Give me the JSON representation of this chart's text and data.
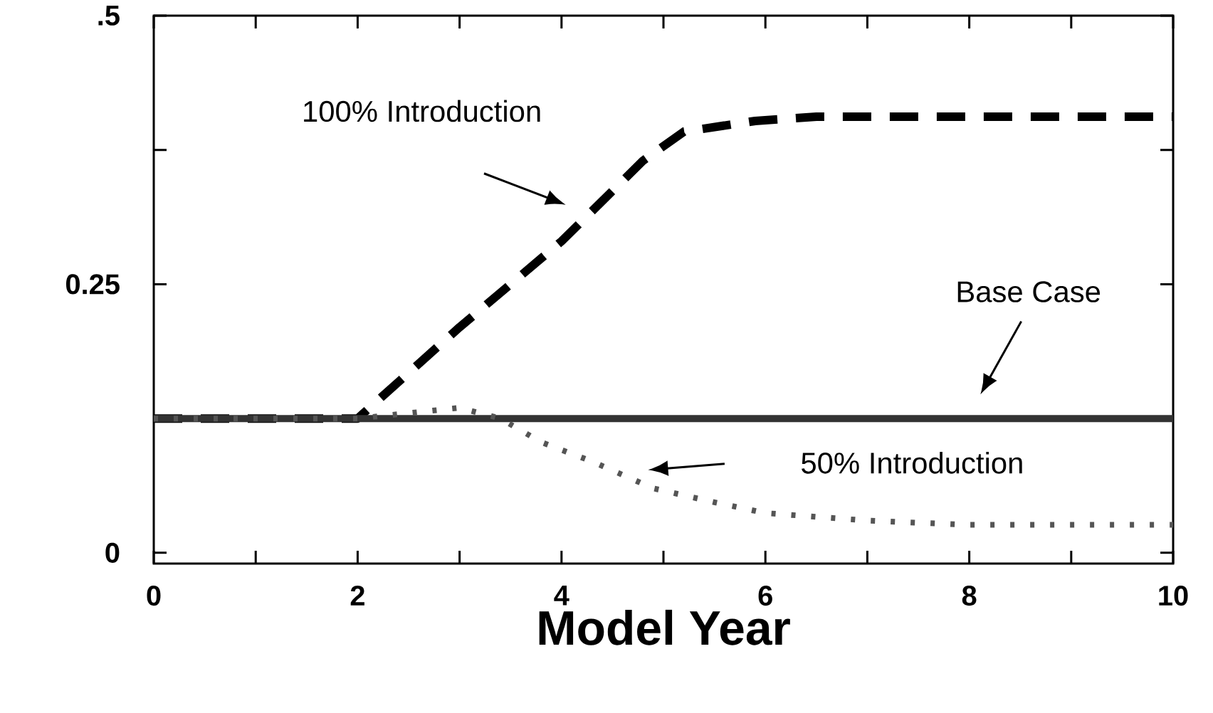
{
  "chart_data": {
    "type": "line",
    "xlabel": "Model Year",
    "xlim": [
      0,
      10
    ],
    "xticks": [
      0,
      {
        "value": 1,
        "label": null
      },
      2,
      {
        "value": 3,
        "label": null
      },
      4,
      {
        "value": 5,
        "label": null
      },
      6,
      {
        "value": 7,
        "label": null
      },
      8,
      {
        "value": 9,
        "label": null
      },
      10
    ],
    "ylim": [
      -0.01,
      0.5
    ],
    "yticks": [
      0,
      {
        "value": 0.125,
        "label": null
      },
      {
        "value": 0.25,
        "label": "0.25"
      },
      {
        "value": 0.375,
        "label": null
      },
      {
        "value": 0.5,
        "label": ".5"
      }
    ],
    "series": [
      {
        "color": "#000000",
        "line_style": "dashed",
        "x": [
          0,
          2,
          3,
          4,
          4.8,
          5.2,
          5.9,
          6.5,
          10
        ],
        "values": [
          0.125,
          0.125,
          0.21,
          0.29,
          0.365,
          0.392,
          0.402,
          0.406,
          0.406
        ]
      },
      {
        "color": "#333333",
        "line_style": "solid",
        "x": [
          0,
          10
        ],
        "values": [
          0.125,
          0.125
        ]
      },
      {
        "color": "#555555",
        "line_style": "dotted",
        "x": [
          0,
          2,
          2.5,
          3,
          3.4,
          3.8,
          4.3,
          4.9,
          5.5,
          6,
          7,
          8,
          10
        ],
        "values": [
          0.125,
          0.125,
          0.13,
          0.135,
          0.125,
          0.103,
          0.085,
          0.06,
          0.047,
          0.037,
          0.03,
          0.026,
          0.026
        ]
      }
    ],
    "annotations": [
      "100% Introduction",
      "Base Case",
      "50% Introduction"
    ]
  }
}
